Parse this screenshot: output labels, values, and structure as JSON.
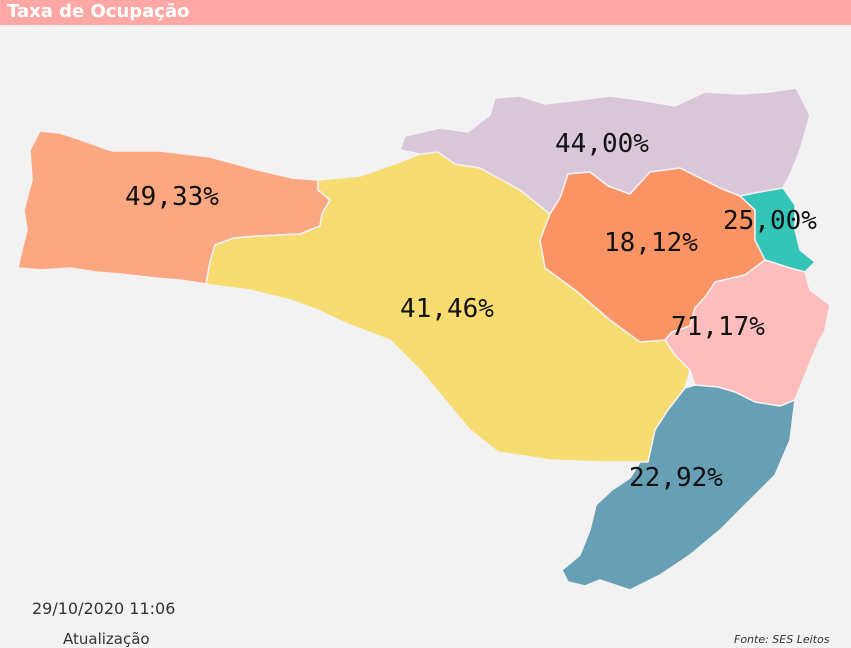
{
  "header": {
    "title": "Taxa de Ocupação"
  },
  "colors": {
    "header_bg": "#fea8a6",
    "background": "#f2f2f2",
    "oeste": "#fba882",
    "meio_oeste_serra": "#f7dc72",
    "norte": "#dac6d9",
    "vale_itajai": "#fb9465",
    "foz_itajai": "#35c5b8",
    "grande_florianopolis": "#fdbdbd",
    "sul": "#67a0b4"
  },
  "map": {
    "regions": [
      {
        "id": "oeste",
        "label": "49,33%"
      },
      {
        "id": "meio_oeste_serra",
        "label": "41,46%"
      },
      {
        "id": "norte",
        "label": "44,00%"
      },
      {
        "id": "vale_itajai",
        "label": "18,12%"
      },
      {
        "id": "foz_itajai",
        "label": "25,00%"
      },
      {
        "id": "grande_florianopolis",
        "label": "71,17%"
      },
      {
        "id": "sul",
        "label": "22,92%"
      }
    ]
  },
  "footer": {
    "timestamp": "29/10/2020 11:06",
    "update_label": "Atualização",
    "source": "Fonte: SES Leitos"
  }
}
